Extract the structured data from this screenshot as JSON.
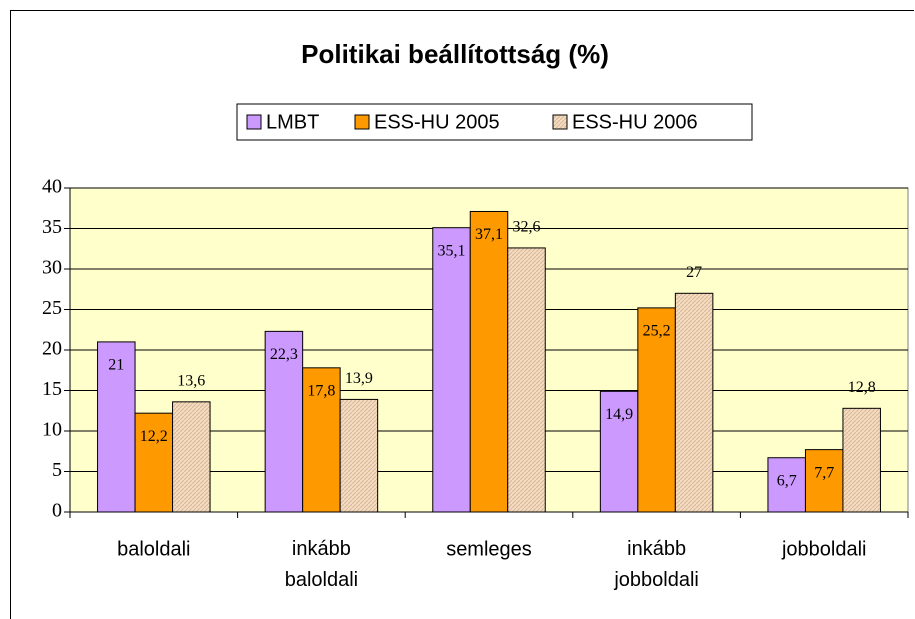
{
  "chart_data": {
    "type": "bar",
    "title": "Politikai beállítottság (%)",
    "categories": [
      "baloldali",
      "inkább baloldali",
      "semleges",
      "inkább jobboldali",
      "jobboldali"
    ],
    "series": [
      {
        "name": "LMBT",
        "color": "#cc99ff",
        "values": [
          21,
          22.3,
          35.1,
          14.9,
          6.7
        ],
        "value_labels": [
          "21",
          "22,3",
          "35,1",
          "14,9",
          "6,7"
        ]
      },
      {
        "name": "ESS-HU 2005",
        "color": "#ff9900",
        "values": [
          12.2,
          17.8,
          37.1,
          25.2,
          7.7
        ],
        "value_labels": [
          "12,2",
          "17,8",
          "37,1",
          "25,2",
          "7,7"
        ]
      },
      {
        "name": "ESS-HU 2006",
        "color": "#f4dcc2",
        "values": [
          13.6,
          13.9,
          32.6,
          27,
          12.8
        ],
        "value_labels": [
          "13,6",
          "13,9",
          "32,6",
          "27",
          "12,8"
        ]
      }
    ],
    "ylim": [
      0,
      40
    ],
    "yticks": [
      0,
      5,
      10,
      15,
      20,
      25,
      30,
      35,
      40
    ],
    "grid": true
  }
}
